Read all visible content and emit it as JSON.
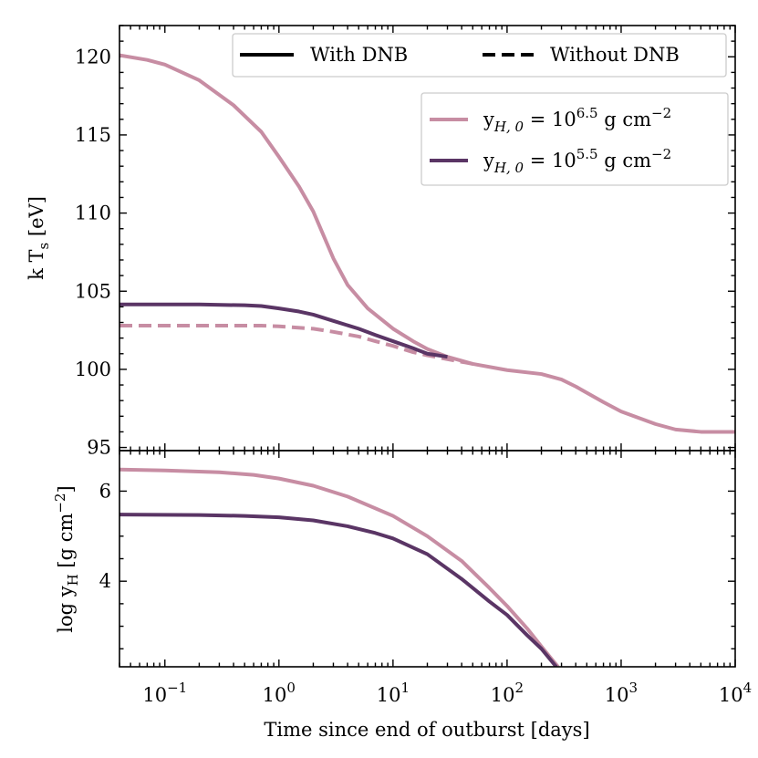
{
  "chart_data": [
    {
      "type": "line",
      "panel": "top",
      "xscale": "log",
      "xlim": [
        0.04,
        10000
      ],
      "ylim": [
        94.8,
        122
      ],
      "ylabel_main": "k T",
      "ylabel_sub": "s",
      "ylabel_unit": " [eV]",
      "yticks": [
        95,
        100,
        105,
        110,
        115,
        120
      ],
      "style_legend": [
        {
          "label": "With DNB",
          "dash": "solid"
        },
        {
          "label": "Without DNB",
          "dash": "dashed"
        }
      ],
      "series_legend": [
        {
          "prefix": "y",
          "sub": "H, 0",
          "mid": " = 10",
          "sup": "6.5",
          "unit": " g cm",
          "unit_sup": "−2",
          "color": "#c78da3"
        },
        {
          "prefix": "y",
          "sub": "H, 0",
          "mid": " = 10",
          "sup": "5.5",
          "unit": " g cm",
          "unit_sup": "−2",
          "color": "#5a3565"
        }
      ],
      "series": [
        {
          "name": "y_H0 = 10^6.5, with DNB",
          "color": "#c78da3",
          "dash": "solid",
          "x": [
            0.04,
            0.07,
            0.1,
            0.2,
            0.4,
            0.7,
            1.0,
            1.5,
            2.0,
            3.0,
            4.0,
            6.0,
            10,
            15,
            20,
            30,
            50,
            100,
            200,
            300,
            400,
            700,
            1000,
            2000,
            3000,
            5000,
            10000
          ],
          "y": [
            120.1,
            119.8,
            119.5,
            118.5,
            116.9,
            115.2,
            113.6,
            111.7,
            110.1,
            107.1,
            105.4,
            103.9,
            102.6,
            101.8,
            101.3,
            100.8,
            100.35,
            99.95,
            99.7,
            99.35,
            98.9,
            97.9,
            97.3,
            96.5,
            96.15,
            96.0,
            96.0
          ]
        },
        {
          "name": "y_H0 = 10^5.5, with DNB",
          "color": "#5a3565",
          "dash": "solid",
          "x": [
            0.04,
            0.1,
            0.2,
            0.5,
            0.7,
            1.0,
            1.5,
            2.0,
            3.0,
            5.0,
            7.0,
            10,
            15,
            20,
            30
          ],
          "y": [
            104.15,
            104.15,
            104.15,
            104.1,
            104.05,
            103.9,
            103.7,
            103.5,
            103.1,
            102.6,
            102.2,
            101.8,
            101.35,
            101.0,
            100.8
          ]
        },
        {
          "name": "y_H0 = 10^6.5, without DNB",
          "color": "#c78da3",
          "dash": "dashed",
          "x": [
            0.04,
            0.1,
            0.3,
            0.7,
            1.0,
            2.0,
            3.0,
            5.0,
            7.0,
            10,
            15,
            20,
            30,
            50
          ],
          "y": [
            102.8,
            102.8,
            102.8,
            102.8,
            102.75,
            102.6,
            102.4,
            102.1,
            101.8,
            101.5,
            101.1,
            100.9,
            100.65,
            100.35
          ]
        }
      ]
    },
    {
      "type": "line",
      "panel": "bottom",
      "xscale": "log",
      "xlim": [
        0.04,
        10000
      ],
      "ylim": [
        2.1,
        6.9
      ],
      "xlabel": "Time since end of outburst [days]",
      "ylabel_main": "log y",
      "ylabel_sub": "H",
      "ylabel_unit": " [g cm",
      "ylabel_unit_sup": "−2",
      "ylabel_close": "]",
      "yticks": [
        4,
        6
      ],
      "xtick_exponents": [
        -1,
        0,
        1,
        2,
        3,
        4
      ],
      "xtick_base": "10",
      "series": [
        {
          "name": "log y_H, y_H0 = 10^6.5",
          "color": "#c78da3",
          "dash": "solid",
          "x": [
            0.04,
            0.1,
            0.3,
            0.6,
            1.0,
            2.0,
            4.0,
            10,
            20,
            40,
            70,
            100,
            150,
            200,
            250,
            280
          ],
          "y": [
            6.48,
            6.46,
            6.42,
            6.36,
            6.28,
            6.12,
            5.88,
            5.45,
            5.0,
            4.45,
            3.85,
            3.45,
            2.95,
            2.55,
            2.25,
            2.1
          ]
        },
        {
          "name": "log y_H, y_H0 = 10^5.5",
          "color": "#5a3565",
          "dash": "solid",
          "x": [
            0.04,
            0.2,
            0.5,
            1.0,
            2.0,
            4.0,
            7.0,
            10,
            20,
            40,
            70,
            100,
            150,
            200,
            270
          ],
          "y": [
            5.48,
            5.47,
            5.45,
            5.42,
            5.35,
            5.22,
            5.07,
            4.95,
            4.6,
            4.05,
            3.55,
            3.25,
            2.8,
            2.5,
            2.1
          ]
        }
      ]
    }
  ]
}
